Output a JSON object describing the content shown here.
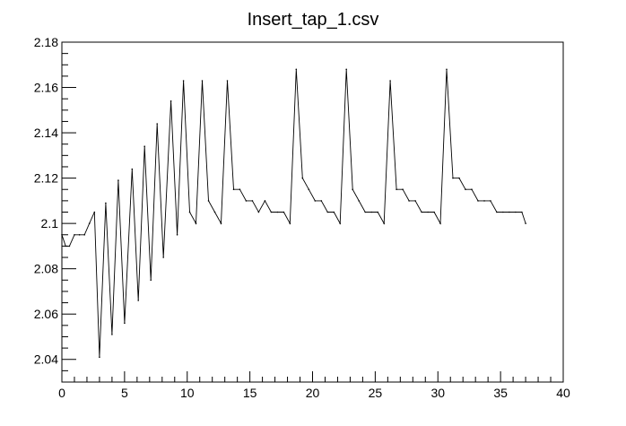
{
  "chart_data": {
    "type": "line",
    "title": "Insert_tap_1.csv",
    "xlabel": "",
    "ylabel": "",
    "xlim": [
      0,
      40
    ],
    "ylim": [
      2.03,
      2.18
    ],
    "grid": false,
    "legend": "none",
    "x_ticks": [
      0,
      5,
      10,
      15,
      20,
      25,
      30,
      35,
      40
    ],
    "x_tick_labels": [
      "0",
      "5",
      "10",
      "15",
      "20",
      "25",
      "30",
      "35",
      "40"
    ],
    "y_ticks": [
      2.04,
      2.06,
      2.08,
      2.1,
      2.12,
      2.14,
      2.16,
      2.18
    ],
    "y_tick_labels": [
      "2.04",
      "2.06",
      "2.08",
      "2.1",
      "2.12",
      "2.14",
      "2.16",
      "2.18"
    ],
    "line_color": "#000000",
    "series": [
      {
        "x": [
          0,
          0.3,
          0.6,
          1.0,
          1.4,
          1.8,
          2.2,
          2.6,
          3.0,
          3.5,
          4.0,
          4.5,
          5.0,
          5.6,
          6.1,
          6.6,
          7.1,
          7.6,
          8.1,
          8.7,
          9.2,
          9.7,
          10.2,
          10.7,
          11.2,
          11.7,
          12.2,
          12.7,
          13.2,
          13.7,
          14.2,
          14.7,
          15.2,
          15.7,
          16.2,
          16.7,
          17.2,
          17.7,
          18.2,
          18.7,
          19.2,
          19.7,
          20.2,
          20.7,
          21.2,
          21.7,
          22.2,
          22.7,
          23.2,
          23.7,
          24.2,
          24.7,
          25.2,
          25.7,
          26.2,
          26.7,
          27.2,
          27.7,
          28.2,
          28.7,
          29.2,
          29.7,
          30.2,
          30.7,
          31.2,
          31.7,
          32.2,
          32.7,
          33.2,
          33.7,
          34.2,
          34.7,
          35.2,
          35.7,
          36.2,
          36.7,
          37.0
        ],
        "y": [
          2.095,
          2.09,
          2.09,
          2.095,
          2.095,
          2.095,
          2.1,
          2.105,
          2.041,
          2.109,
          2.051,
          2.119,
          2.056,
          2.124,
          2.066,
          2.134,
          2.075,
          2.144,
          2.085,
          2.154,
          2.095,
          2.163,
          2.105,
          2.1,
          2.163,
          2.11,
          2.105,
          2.1,
          2.163,
          2.115,
          2.115,
          2.11,
          2.11,
          2.105,
          2.11,
          2.105,
          2.105,
          2.105,
          2.1,
          2.168,
          2.12,
          2.115,
          2.11,
          2.11,
          2.105,
          2.105,
          2.1,
          2.168,
          2.115,
          2.11,
          2.105,
          2.105,
          2.105,
          2.1,
          2.163,
          2.115,
          2.115,
          2.11,
          2.11,
          2.105,
          2.105,
          2.105,
          2.1,
          2.168,
          2.12,
          2.12,
          2.115,
          2.115,
          2.11,
          2.11,
          2.11,
          2.105,
          2.105,
          2.105,
          2.105,
          2.105,
          2.1
        ]
      }
    ]
  }
}
